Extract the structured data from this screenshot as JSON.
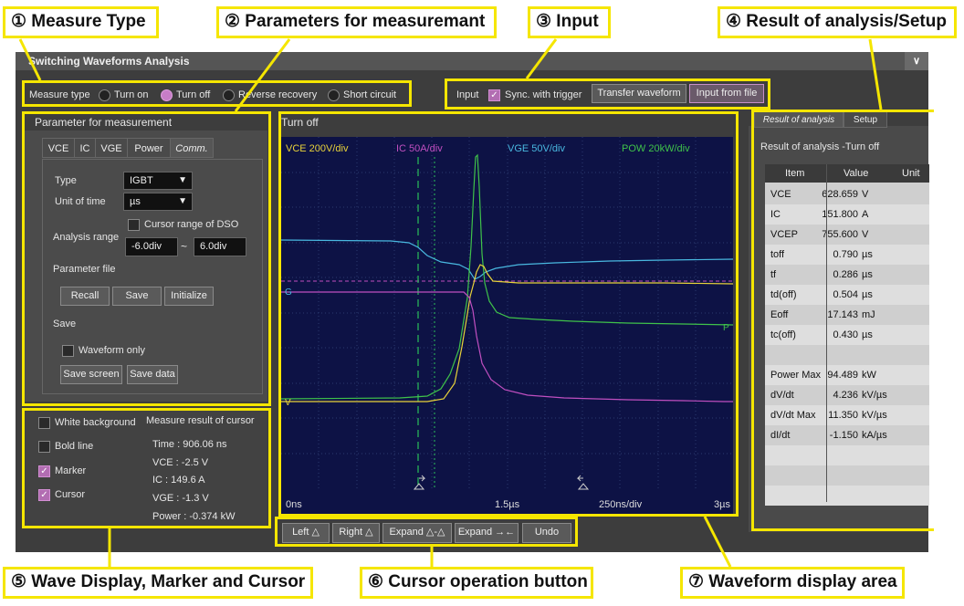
{
  "window": {
    "title": "Switching Waveforms Analysis",
    "collapse_icon": "chevron-down-icon"
  },
  "measure_type": {
    "label": "Measure type",
    "options": [
      "Turn on",
      "Turn off",
      "Reverse recovery",
      "Short circuit"
    ],
    "selected": "Turn off"
  },
  "input": {
    "label": "Input",
    "sync_label": "Sync. with trigger",
    "sync_checked": true,
    "transfer_button": "Transfer waveform",
    "file_button": "Input from file"
  },
  "params": {
    "title": "Parameter for measurement",
    "tabs": [
      "VCE",
      "IC",
      "VGE",
      "Power",
      "Comm."
    ],
    "active_tab": "Comm.",
    "type_label": "Type",
    "type_value": "IGBT",
    "unit_label": "Unit of time",
    "unit_value": "µs",
    "cursor_range_label": "Cursor range of DSO",
    "analysis_range_label": "Analysis range",
    "range_from": "-6.0div",
    "range_sep": "~",
    "range_to": "6.0div",
    "param_file_label": "Parameter file",
    "recall": "Recall",
    "save": "Save",
    "initialize": "Initialize",
    "save_section": "Save",
    "waveform_only": "Waveform only",
    "save_screen": "Save screen",
    "save_data": "Save data"
  },
  "display_opts": {
    "white_bg": "White background",
    "bold_line": "Bold line",
    "marker": "Marker",
    "cursor": "Cursor",
    "marker_checked": true,
    "cursor_checked": true
  },
  "cursor_result": {
    "title": "Measure result of cursor",
    "time": "Time : 906.06 ns",
    "vce": "VCE : -2.5 V",
    "ic": "IC : 149.6 A",
    "vge": "VGE : -1.3 V",
    "power": "Power : -0.374 kW"
  },
  "waveform": {
    "title": "Turn off",
    "ch_vce": "VCE 200V/div",
    "ch_ic": "IC 50A/div",
    "ch_vge": "VGE 50V/div",
    "ch_pow": "POW 20kW/div",
    "x_start": "0ns",
    "x_mid": "1.5µs",
    "x_scale": "250ns/div",
    "x_end": "3µs",
    "marker_g": "G",
    "marker_p": "P",
    "marker_v": "V",
    "colors": {
      "vce": "#e8d23a",
      "ic": "#c04fc0",
      "vge": "#49b8e0",
      "pow": "#3fc24a"
    }
  },
  "cursor_buttons": [
    "Left △",
    "Right △",
    "Expand △-△",
    "Expand →←",
    "Undo"
  ],
  "results": {
    "tabs": [
      "Result of analysis",
      "Setup"
    ],
    "subtitle": "Result of analysis -Turn off",
    "headers": [
      "Item",
      "Value",
      "Unit"
    ],
    "rows": [
      {
        "item": "VCE",
        "value": "628.659",
        "unit": "V"
      },
      {
        "item": "IC",
        "value": "151.800",
        "unit": "A"
      },
      {
        "item": "VCEP",
        "value": "755.600",
        "unit": "V"
      },
      {
        "item": "toff",
        "value": "0.790",
        "unit": "µs"
      },
      {
        "item": "tf",
        "value": "0.286",
        "unit": "µs"
      },
      {
        "item": "td(off)",
        "value": "0.504",
        "unit": "µs"
      },
      {
        "item": "Eoff",
        "value": "17.143",
        "unit": "mJ"
      },
      {
        "item": "tc(off)",
        "value": "0.430",
        "unit": "µs"
      },
      {
        "item": "",
        "value": "",
        "unit": ""
      },
      {
        "item": "Power Max",
        "value": "94.489",
        "unit": "kW"
      },
      {
        "item": "dV/dt",
        "value": "4.236",
        "unit": "kV/µs"
      },
      {
        "item": "dV/dt Max",
        "value": "11.350",
        "unit": "kV/µs"
      },
      {
        "item": "dI/dt",
        "value": "-1.150",
        "unit": "kA/µs"
      },
      {
        "item": "",
        "value": "",
        "unit": ""
      },
      {
        "item": "",
        "value": "",
        "unit": ""
      },
      {
        "item": "",
        "value": "",
        "unit": ""
      }
    ]
  },
  "annotations": {
    "a1": "① Measure Type",
    "a2": "② Parameters for measuremant",
    "a3": "③ Input",
    "a4": "④ Result of analysis/Setup",
    "a5": "⑤ Wave Display, Marker and Cursor",
    "a6": "⑥ Cursor operation button",
    "a7": "⑦ Waveform display area",
    "color": "#f5e600"
  }
}
